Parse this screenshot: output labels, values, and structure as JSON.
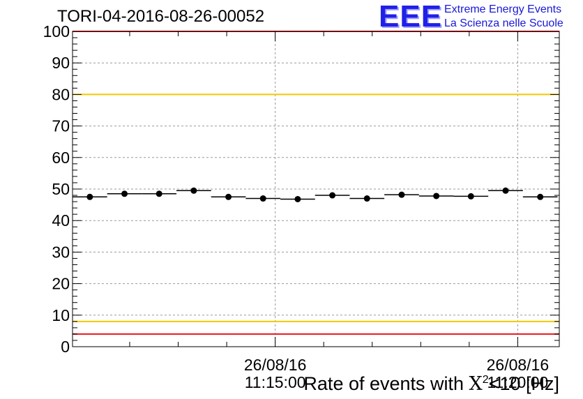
{
  "header": {
    "run_title": "TORI-04-2016-08-26-00052"
  },
  "logo": {
    "mark": "EEE",
    "line1": "Extreme Energy Events",
    "line2": "La Scienza nelle Scuole"
  },
  "colors": {
    "red_limit": "#e8141e",
    "yellow_limit": "#f5c800",
    "grid": "#999999",
    "axis": "#000000",
    "points": "#000000"
  },
  "chart_data": {
    "type": "scatter",
    "title": "TORI-04-2016-08-26-00052",
    "xlabel": "Rate of events with X²<10 [Hz]",
    "xlabel_parts": {
      "pre": "Rate of events with ",
      "chi": "X",
      "sup": "2",
      "post": "<10 [Hz]"
    },
    "ylabel": "",
    "ylim": [
      0,
      100
    ],
    "yticks": [
      0,
      10,
      20,
      30,
      40,
      50,
      60,
      70,
      80,
      90,
      100
    ],
    "ytick_labels": [
      "0",
      "10",
      "20",
      "30",
      "40",
      "50",
      "60",
      "70",
      "80",
      "90",
      "100"
    ],
    "x_range_bins": [
      0,
      14.05
    ],
    "x_time_labels": [
      {
        "bin": 5.85,
        "date": "26/08/16",
        "time": "11:15:00"
      },
      {
        "bin": 12.85,
        "date": "26/08/16",
        "time": "11:20:00"
      }
    ],
    "x_major_tick_bins": [
      5.85,
      12.85
    ],
    "x_minor_tick_bins": [
      1.65,
      3.05,
      4.45,
      7.25,
      8.65,
      10.05,
      11.45
    ],
    "grid": true,
    "limits": [
      {
        "value": 100,
        "color": "red"
      },
      {
        "value": 80,
        "color": "yellow"
      },
      {
        "value": 8,
        "color": "yellow"
      },
      {
        "value": 4,
        "color": "red"
      }
    ],
    "series": [
      {
        "name": "rate",
        "values": [
          47.5,
          48.5,
          48.5,
          49.5,
          47.5,
          47.0,
          46.8,
          48.0,
          47.0,
          48.2,
          47.8,
          47.7,
          49.5,
          47.5
        ],
        "errors": [
          0.7,
          0.7,
          0.7,
          0.7,
          0.7,
          0.7,
          0.7,
          0.7,
          0.7,
          0.7,
          0.7,
          0.7,
          0.7,
          0.7
        ]
      }
    ]
  }
}
